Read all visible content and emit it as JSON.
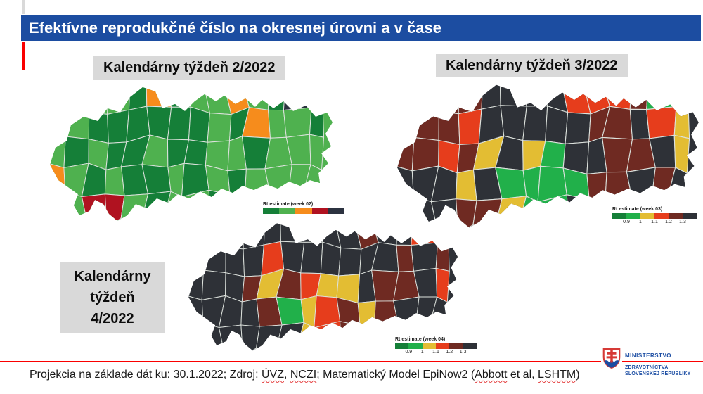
{
  "title": "Efektívne reprodukčné číslo na okresnej úrovni a v čase",
  "labels": {
    "week2": "Kalendárny týždeň 2/2022",
    "week3": "Kalendárny týždeň 3/2022",
    "week4_l1": "Kalendárny",
    "week4_l2": "týždeň",
    "week4_l3": "4/2022"
  },
  "palette": {
    "lg": "#4fb14f",
    "dg": "#157f38",
    "or": "#f68c1c",
    "dr": "#b01220",
    "nv": "#2c3240",
    "ch": "#2e3137",
    "mr": "#6f2a22",
    "rd": "#e63d1c",
    "gd": "#e3bd33",
    "gr": "#21b04a"
  },
  "legends": [
    {
      "title": "Rt estimate (week 02)",
      "colors": [
        "dg",
        "lg",
        "or",
        "dr",
        "nv"
      ],
      "ticks": []
    },
    {
      "title": "Rt estimate (week 03)",
      "colors": [
        "dg",
        "gr",
        "gd",
        "rd",
        "mr",
        "ch"
      ],
      "ticks": [
        "0.9",
        "1",
        "1.1",
        "1.2",
        "1.3"
      ]
    },
    {
      "title": "Rt estimate (week 04)",
      "colors": [
        "dg",
        "gr",
        "gd",
        "rd",
        "mr",
        "ch"
      ],
      "ticks": [
        "0.9",
        "1",
        "1.1",
        "1.2",
        "1.3"
      ]
    }
  ],
  "maps": {
    "week2": {
      "base": "lg",
      "cells": [
        "lg",
        "dg",
        "lg",
        "lg",
        "dg",
        "or",
        "dg",
        "lg",
        "lg",
        "or",
        "lg",
        "dg",
        "nv",
        "dg",
        "lg",
        "lg",
        "dg",
        "dg",
        "dg",
        "dg",
        "dg",
        "dg",
        "lg",
        "dg",
        "or",
        "lg",
        "lg",
        "dg",
        "lg",
        "dg",
        "lg",
        "dg",
        "dg",
        "lg",
        "dg",
        "dg",
        "lg",
        "lg",
        "dg",
        "lg",
        "lg",
        "lg",
        "or",
        "lg",
        "dg",
        "lg",
        "dg",
        "dg",
        "lg",
        "dg",
        "lg",
        "dg",
        "lg",
        "lg",
        "lg",
        "lg",
        "lg",
        "lg",
        "dr",
        "dr",
        "lg",
        "dg",
        "lg",
        "lg",
        "dg",
        "lg",
        "lg",
        "dg",
        "lg",
        "lg"
      ]
    },
    "week3": {
      "base": "ch",
      "cells": [
        "ch",
        "ch",
        "mr",
        "mr",
        "ch",
        "ch",
        "ch",
        "ch",
        "rd",
        "rd",
        "rd",
        "mr",
        "gr",
        "ch",
        "ch",
        "mr",
        "mr",
        "rd",
        "ch",
        "ch",
        "ch",
        "ch",
        "ch",
        "mr",
        "mr",
        "ch",
        "rd",
        "gd",
        "mr",
        "mr",
        "rd",
        "mr",
        "gd",
        "ch",
        "gd",
        "gr",
        "ch",
        "ch",
        "mr",
        "mr",
        "ch",
        "gd",
        "ch",
        "ch",
        "ch",
        "gd",
        "ch",
        "gr",
        "gr",
        "gr",
        "gr",
        "mr",
        "mr",
        "ch",
        "mr",
        "ch",
        "ch",
        "ch",
        "ch",
        "mr",
        "mr",
        "gd",
        "gr",
        "gr",
        "ch",
        "ch",
        "ch",
        "ch",
        "ch",
        "ch"
      ]
    },
    "week4": {
      "base": "ch",
      "cells": [
        "ch",
        "ch",
        "ch",
        "ch",
        "ch",
        "ch",
        "ch",
        "ch",
        "ch",
        "mr",
        "ch",
        "ch",
        "rd",
        "mr",
        "ch",
        "ch",
        "ch",
        "ch",
        "rd",
        "ch",
        "ch",
        "ch",
        "ch",
        "ch",
        "ch",
        "mr",
        "ch",
        "mr",
        "ch",
        "ch",
        "ch",
        "mr",
        "gd",
        "mr",
        "rd",
        "gd",
        "gd",
        "ch",
        "mr",
        "mr",
        "ch",
        "rd",
        "ch",
        "ch",
        "ch",
        "ch",
        "mr",
        "gr",
        "gd",
        "rd",
        "mr",
        "gd",
        "mr",
        "ch",
        "ch",
        "ch",
        "ch",
        "ch",
        "ch",
        "ch",
        "ch",
        "ch",
        "gd",
        "rd",
        "mr",
        "ch",
        "ch",
        "ch",
        "ch",
        "ch"
      ]
    }
  },
  "footer": {
    "segments": [
      {
        "text": "Projekcia na základe dát ku: 30.1.2022; Zdroj: ",
        "wavy": false
      },
      {
        "text": "ÚVZ",
        "wavy": true
      },
      {
        "text": ", ",
        "wavy": false
      },
      {
        "text": "NCZI",
        "wavy": true
      },
      {
        "text": "; Matematický Model EpiNow2 (",
        "wavy": false
      },
      {
        "text": "Abbott",
        "wavy": true
      },
      {
        "text": " et al, ",
        "wavy": false
      },
      {
        "text": "LSHTM",
        "wavy": true
      },
      {
        "text": ")",
        "wavy": false
      }
    ]
  },
  "logo": {
    "line1": "MINISTERSTVO",
    "line2": "ZDRAVOTNÍCTVA",
    "line3": "SLOVENSKEJ REPUBLIKY"
  }
}
